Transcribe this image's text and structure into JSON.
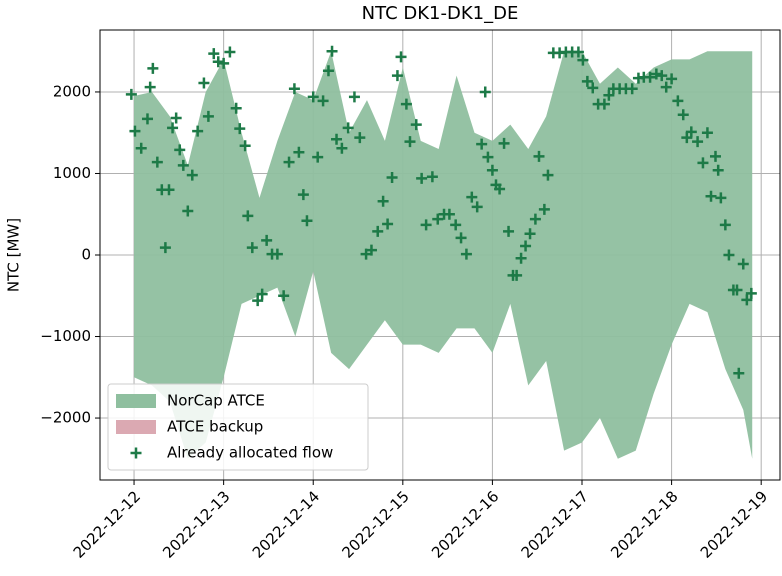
{
  "chart_data": {
    "type": "area_scatter",
    "title": "NTC DK1-DK1_DE",
    "y_label": "NTC [MW]",
    "xlim": [
      -0.38,
      7.21
    ],
    "ylim": [
      -2760,
      2760
    ],
    "xticks": [
      {
        "value": 0,
        "label": "2022-12-12"
      },
      {
        "value": 1,
        "label": "2022-12-13"
      },
      {
        "value": 2,
        "label": "2022-12-14"
      },
      {
        "value": 3,
        "label": "2022-12-15"
      },
      {
        "value": 4,
        "label": "2022-12-16"
      },
      {
        "value": 5,
        "label": "2022-12-17"
      },
      {
        "value": 6,
        "label": "2022-12-18"
      },
      {
        "value": 7,
        "label": "2022-12-19"
      }
    ],
    "yticks": [
      {
        "value": -2000,
        "label": "−2000"
      },
      {
        "value": -1000,
        "label": "−1000"
      },
      0,
      1000,
      2000
    ],
    "grid": true,
    "legend": "lower left",
    "series": [
      {
        "name": "NorCap ATCE",
        "color": "#8fbf9f",
        "x": [
          0,
          0.2,
          0.4,
          0.6,
          0.8,
          1.0,
          1.2,
          1.4,
          1.6,
          1.8,
          2.0,
          2.2,
          2.4,
          2.6,
          2.8,
          3.0,
          3.2,
          3.4,
          3.6,
          3.8,
          4.0,
          4.2,
          4.4,
          4.6,
          4.8,
          5.0,
          5.2,
          5.4,
          5.6,
          5.8,
          6.0,
          6.2,
          6.4,
          6.6,
          6.8,
          6.9
        ],
        "upper": [
          1950,
          2000,
          1700,
          1100,
          2000,
          2400,
          1500,
          700,
          1400,
          2000,
          1900,
          2500,
          1500,
          1900,
          1400,
          2300,
          1400,
          1300,
          2200,
          1500,
          1400,
          1600,
          1300,
          1700,
          2500,
          2500,
          2100,
          2300,
          2100,
          2300,
          2400,
          2400,
          2500,
          2500,
          2500,
          2500
        ],
        "lower": [
          -1500,
          -1600,
          -1800,
          -2500,
          -2300,
          -1500,
          -600,
          -500,
          -400,
          -1000,
          -200,
          -1200,
          -1400,
          -1100,
          -800,
          -1100,
          -1100,
          -1200,
          -900,
          -900,
          -1200,
          -600,
          -1600,
          -1300,
          -2400,
          -2300,
          -2000,
          -2500,
          -2400,
          -1700,
          -1100,
          -600,
          -700,
          -1400,
          -1900,
          -2500
        ]
      },
      {
        "name": "ATCE backup",
        "color": "#dba9b2"
      },
      {
        "name": "Already allocated flow",
        "color": "#1d7a47",
        "x": [
          -0.03,
          0.01,
          0.08,
          0.15,
          0.18,
          0.21,
          0.26,
          0.31,
          0.35,
          0.39,
          0.43,
          0.47,
          0.51,
          0.55,
          0.6,
          0.65,
          0.71,
          0.78,
          0.83,
          0.89,
          0.94,
          1.0,
          1.07,
          1.14,
          1.18,
          1.24,
          1.27,
          1.32,
          1.38,
          1.43,
          1.48,
          1.54,
          1.6,
          1.67,
          1.73,
          1.79,
          1.84,
          1.89,
          1.93,
          2.0,
          2.05,
          2.11,
          2.17,
          2.21,
          2.26,
          2.32,
          2.39,
          2.46,
          2.52,
          2.59,
          2.65,
          2.72,
          2.78,
          2.83,
          2.88,
          2.94,
          2.98,
          3.04,
          3.08,
          3.15,
          3.21,
          3.26,
          3.33,
          3.39,
          3.46,
          3.52,
          3.59,
          3.65,
          3.71,
          3.77,
          3.83,
          3.88,
          3.92,
          3.95,
          4.0,
          4.04,
          4.08,
          4.13,
          4.18,
          4.23,
          4.27,
          4.32,
          4.37,
          4.42,
          4.48,
          4.52,
          4.58,
          4.62,
          4.68,
          4.75,
          4.82,
          4.89,
          4.96,
          5.01,
          5.06,
          5.12,
          5.18,
          5.25,
          5.3,
          5.35,
          5.42,
          5.49,
          5.56,
          5.63,
          5.69,
          5.76,
          5.83,
          5.89,
          5.94,
          6.0,
          6.07,
          6.13,
          6.17,
          6.22,
          6.29,
          6.35,
          6.4,
          6.44,
          6.49,
          6.52,
          6.55,
          6.6,
          6.64,
          6.69,
          6.73,
          6.75,
          6.8,
          6.84,
          6.89
        ],
        "values": [
          1970,
          1520,
          1310,
          1670,
          2060,
          2290,
          1140,
          800,
          90,
          800,
          1560,
          1680,
          1290,
          1100,
          540,
          980,
          1520,
          2110,
          1700,
          2470,
          2370,
          2350,
          2490,
          1800,
          1550,
          1340,
          480,
          90,
          -560,
          -480,
          180,
          10,
          10,
          -500,
          1140,
          2040,
          1260,
          740,
          420,
          1940,
          1200,
          1890,
          2260,
          2500,
          1420,
          1310,
          1560,
          1940,
          1440,
          10,
          60,
          290,
          660,
          380,
          950,
          2200,
          2430,
          1850,
          1390,
          1600,
          940,
          370,
          960,
          440,
          500,
          500,
          370,
          210,
          10,
          710,
          590,
          1360,
          2000,
          1200,
          1040,
          860,
          810,
          1370,
          290,
          -250,
          -250,
          -40,
          110,
          260,
          440,
          1210,
          560,
          980,
          2480,
          2480,
          2490,
          2490,
          2490,
          2390,
          2130,
          2050,
          1850,
          1850,
          1960,
          2040,
          2040,
          2040,
          2040,
          2170,
          2180,
          2180,
          2220,
          2200,
          2060,
          2160,
          1890,
          1720,
          1440,
          1510,
          1390,
          1130,
          1500,
          720,
          1210,
          1040,
          700,
          370,
          0,
          -430,
          -430,
          -1450,
          -110,
          -550,
          -470
        ]
      }
    ]
  }
}
